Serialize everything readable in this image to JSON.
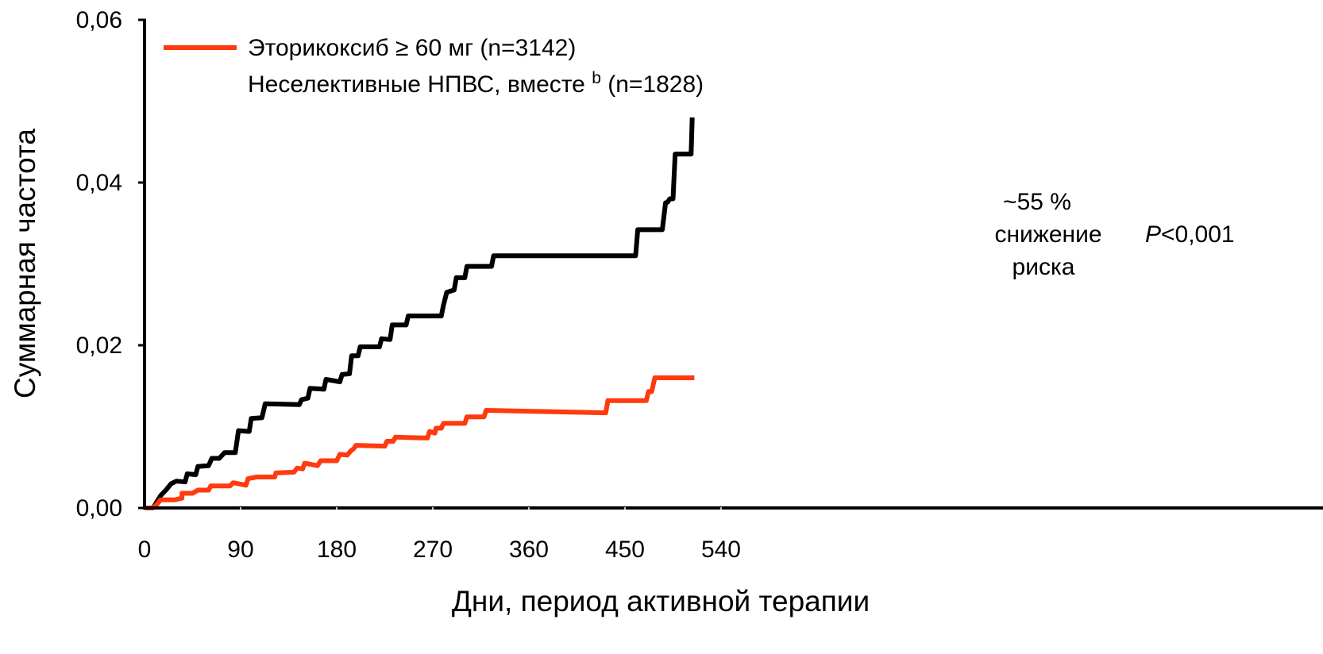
{
  "chart_data": {
    "type": "line",
    "step": true,
    "xlabel": "Дни, период активной терапии",
    "ylabel": "Суммарная частота",
    "xlim": [
      0,
      540
    ],
    "ylim": [
      0,
      0.06
    ],
    "x_ticks": [
      0,
      90,
      180,
      270,
      360,
      450,
      540
    ],
    "x_tick_labels": [
      "0",
      "90",
      "180",
      "270",
      "360",
      "450",
      "540"
    ],
    "y_ticks": [
      0,
      0.02,
      0.04,
      0.06
    ],
    "y_tick_labels": [
      "0,00",
      "0,02",
      "0,04",
      "0,06"
    ],
    "legend_position": "top-left",
    "annotations": {
      "risk_line1": "~55 %",
      "risk_line2": "снижение",
      "risk_line3": "риска",
      "p_prefix": "P",
      "p_value": "<0,001"
    },
    "series": [
      {
        "name": "Эторикоксиб ≥ 60 мг (n=3142)",
        "color": "#ff3a0f",
        "points": [
          [
            0,
            0.0
          ],
          [
            8,
            0.0
          ],
          [
            12,
            0.0005
          ],
          [
            15,
            0.001
          ],
          [
            28,
            0.001
          ],
          [
            35,
            0.0012
          ],
          [
            35,
            0.0018
          ],
          [
            45,
            0.0018
          ],
          [
            50,
            0.0022
          ],
          [
            60,
            0.0022
          ],
          [
            62,
            0.0027
          ],
          [
            80,
            0.0027
          ],
          [
            83,
            0.0031
          ],
          [
            95,
            0.0028
          ],
          [
            97,
            0.0036
          ],
          [
            105,
            0.0038
          ],
          [
            122,
            0.0038
          ],
          [
            123,
            0.0043
          ],
          [
            140,
            0.0044
          ],
          [
            143,
            0.0049
          ],
          [
            148,
            0.0048
          ],
          [
            150,
            0.0055
          ],
          [
            162,
            0.0052
          ],
          [
            165,
            0.0058
          ],
          [
            180,
            0.0058
          ],
          [
            183,
            0.0066
          ],
          [
            190,
            0.0065
          ],
          [
            193,
            0.007
          ],
          [
            196,
            0.0073
          ],
          [
            198,
            0.0077
          ],
          [
            225,
            0.0076
          ],
          [
            227,
            0.0082
          ],
          [
            233,
            0.0082
          ],
          [
            235,
            0.0087
          ],
          [
            265,
            0.0086
          ],
          [
            267,
            0.0094
          ],
          [
            272,
            0.0092
          ],
          [
            273,
            0.0098
          ],
          [
            278,
            0.0098
          ],
          [
            280,
            0.0104
          ],
          [
            300,
            0.0104
          ],
          [
            302,
            0.0112
          ],
          [
            318,
            0.0112
          ],
          [
            320,
            0.012
          ],
          [
            432,
            0.0117
          ],
          [
            434,
            0.0132
          ],
          [
            470,
            0.0132
          ],
          [
            472,
            0.0143
          ],
          [
            475,
            0.0143
          ],
          [
            478,
            0.016
          ],
          [
            515,
            0.016
          ]
        ]
      },
      {
        "name": "Неселективные НПВС, вместе",
        "name_superscript": "b",
        "name_suffix": "(n=1828)",
        "color": "#000000",
        "points": [
          [
            0,
            0.0
          ],
          [
            8,
            0.0
          ],
          [
            15,
            0.0015
          ],
          [
            20,
            0.0022
          ],
          [
            25,
            0.003
          ],
          [
            30,
            0.0033
          ],
          [
            38,
            0.0032
          ],
          [
            40,
            0.0042
          ],
          [
            48,
            0.0041
          ],
          [
            50,
            0.0051
          ],
          [
            60,
            0.0052
          ],
          [
            63,
            0.0061
          ],
          [
            70,
            0.0061
          ],
          [
            75,
            0.0068
          ],
          [
            85,
            0.0068
          ],
          [
            88,
            0.0095
          ],
          [
            98,
            0.0094
          ],
          [
            100,
            0.011
          ],
          [
            110,
            0.0111
          ],
          [
            113,
            0.0128
          ],
          [
            145,
            0.0127
          ],
          [
            147,
            0.0133
          ],
          [
            153,
            0.0135
          ],
          [
            155,
            0.0147
          ],
          [
            168,
            0.0146
          ],
          [
            170,
            0.0158
          ],
          [
            183,
            0.0155
          ],
          [
            185,
            0.0164
          ],
          [
            192,
            0.0165
          ],
          [
            194,
            0.0187
          ],
          [
            200,
            0.0187
          ],
          [
            202,
            0.0198
          ],
          [
            220,
            0.0198
          ],
          [
            222,
            0.0208
          ],
          [
            230,
            0.0207
          ],
          [
            232,
            0.0225
          ],
          [
            245,
            0.0225
          ],
          [
            247,
            0.0236
          ],
          [
            278,
            0.0236
          ],
          [
            280,
            0.0249
          ],
          [
            283,
            0.0265
          ],
          [
            290,
            0.0268
          ],
          [
            292,
            0.0283
          ],
          [
            300,
            0.0283
          ],
          [
            302,
            0.0297
          ],
          [
            325,
            0.0297
          ],
          [
            327,
            0.031
          ],
          [
            460,
            0.031
          ],
          [
            462,
            0.0342
          ],
          [
            485,
            0.0342
          ],
          [
            488,
            0.0375
          ],
          [
            490,
            0.0376
          ],
          [
            492,
            0.038
          ],
          [
            495,
            0.038
          ],
          [
            497,
            0.0435
          ],
          [
            512,
            0.0435
          ],
          [
            513,
            0.048
          ]
        ]
      }
    ]
  }
}
